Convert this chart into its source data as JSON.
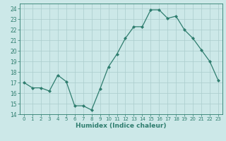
{
  "x": [
    0,
    1,
    2,
    3,
    4,
    5,
    6,
    7,
    8,
    9,
    10,
    11,
    12,
    13,
    14,
    15,
    16,
    17,
    18,
    19,
    20,
    21,
    22,
    23
  ],
  "y": [
    17.0,
    16.5,
    16.5,
    16.2,
    17.7,
    17.1,
    14.8,
    14.8,
    14.4,
    16.4,
    18.5,
    19.7,
    21.2,
    22.3,
    22.3,
    23.9,
    23.9,
    23.1,
    23.3,
    22.0,
    21.2,
    20.1,
    19.0,
    17.2
  ],
  "xlabel": "Humidex (Indice chaleur)",
  "ylim": [
    14,
    24.5
  ],
  "xlim": [
    -0.5,
    23.5
  ],
  "yticks": [
    14,
    15,
    16,
    17,
    18,
    19,
    20,
    21,
    22,
    23,
    24
  ],
  "xticks": [
    0,
    1,
    2,
    3,
    4,
    5,
    6,
    7,
    8,
    9,
    10,
    11,
    12,
    13,
    14,
    15,
    16,
    17,
    18,
    19,
    20,
    21,
    22,
    23
  ],
  "xtick_labels": [
    "0",
    "1",
    "2",
    "3",
    "4",
    "5",
    "6",
    "7",
    "8",
    "9",
    "10",
    "11",
    "12",
    "13",
    "14",
    "15",
    "16",
    "17",
    "18",
    "19",
    "20",
    "21",
    "22",
    "23"
  ],
  "line_color": "#2e7d6e",
  "marker_color": "#2e7d6e",
  "bg_color": "#cce8e8",
  "grid_color": "#aacccc"
}
